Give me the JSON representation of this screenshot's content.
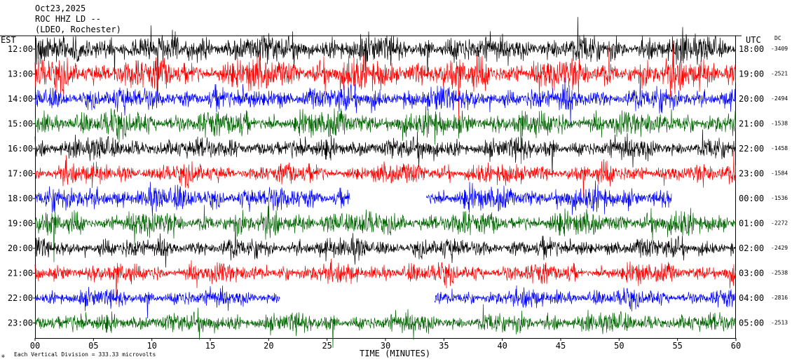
{
  "header": {
    "date": "Oct23,2025",
    "station": "ROC HHZ LD --",
    "location": "(LDEO, Rochester)"
  },
  "axis_titles": {
    "left": "EST",
    "right": "UTC",
    "dc": "DC",
    "x": "TIME (MINUTES)"
  },
  "footer": {
    "scale": "Each Vertical Division =  333.33 microvolts"
  },
  "colors": {
    "black": "#000000",
    "red": "#ff0000",
    "blue": "#0000ff",
    "green": "#006400"
  },
  "chart_data": {
    "type": "line",
    "title": "",
    "xlabel": "TIME (MINUTES)",
    "xlim": [
      0,
      60
    ],
    "x_ticks": [
      "00",
      "05",
      "10",
      "15",
      "20",
      "25",
      "30",
      "35",
      "40",
      "45",
      "50",
      "55",
      "60"
    ],
    "rows": [
      {
        "est": "12:00",
        "utc": "18:00",
        "dc": "-3409",
        "color": "black",
        "amp": 14
      },
      {
        "est": "13:00",
        "utc": "19:00",
        "dc": "-2521",
        "color": "red",
        "amp": 16
      },
      {
        "est": "14:00",
        "utc": "20:00",
        "dc": "-2494",
        "color": "blue",
        "amp": 12
      },
      {
        "est": "15:00",
        "utc": "21:00",
        "dc": "-1538",
        "color": "green",
        "amp": 13
      },
      {
        "est": "16:00",
        "utc": "22:00",
        "dc": "-1458",
        "color": "black",
        "amp": 11
      },
      {
        "est": "17:00",
        "utc": "23:00",
        "dc": "-1584",
        "color": "red",
        "amp": 10
      },
      {
        "est": "18:00",
        "utc": "00:00",
        "dc": "-1536",
        "color": "blue",
        "amp": 12,
        "gaps": [
          [
            27,
            33.5
          ],
          [
            54.5,
            60
          ]
        ]
      },
      {
        "est": "19:00",
        "utc": "01:00",
        "dc": "-2272",
        "color": "green",
        "amp": 12
      },
      {
        "est": "20:00",
        "utc": "02:00",
        "dc": "-2429",
        "color": "black",
        "amp": 10
      },
      {
        "est": "21:00",
        "utc": "03:00",
        "dc": "-2538",
        "color": "red",
        "amp": 10
      },
      {
        "est": "22:00",
        "utc": "04:00",
        "dc": "-2816",
        "color": "blue",
        "amp": 9,
        "gaps": [
          [
            21,
            34.2
          ]
        ]
      },
      {
        "est": "23:00",
        "utc": "05:00",
        "dc": "-2513",
        "color": "green",
        "amp": 10
      }
    ]
  }
}
